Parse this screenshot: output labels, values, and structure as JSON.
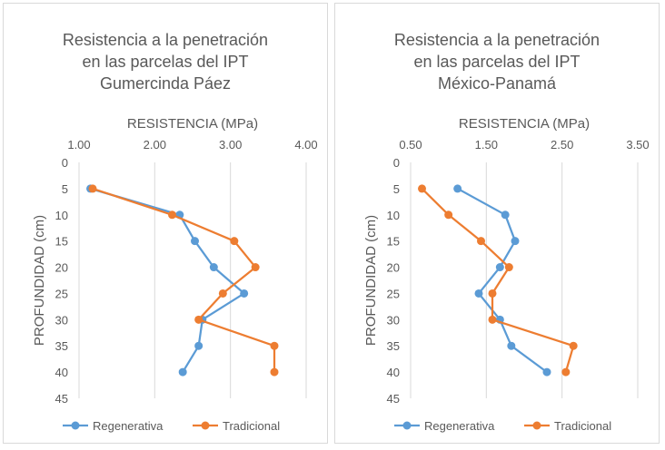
{
  "colors": {
    "regenerativa": "#5B9BD5",
    "tradicional": "#ED7D31",
    "grid": "#d9d9d9",
    "text": "#595959"
  },
  "chart_data": [
    {
      "type": "line",
      "title_lines": [
        "Resistencia a la penetración",
        "en las parcelas del IPT",
        "Gumercinda Páez"
      ],
      "xlabel": "RESISTENCIA (MPa)",
      "ylabel": "PROFUNDIDAD (cm)",
      "x_axis_position": "top",
      "y_axis_inverted": true,
      "xlim": [
        1.0,
        4.0
      ],
      "ylim": [
        0,
        45
      ],
      "x_ticks": [
        "1.00",
        "2.00",
        "3.00",
        "4.00"
      ],
      "x_tick_values": [
        1.0,
        2.0,
        3.0,
        4.0
      ],
      "y_ticks": [
        "0",
        "5",
        "10",
        "15",
        "20",
        "25",
        "30",
        "35",
        "40",
        "45"
      ],
      "y_tick_values": [
        0,
        5,
        10,
        15,
        20,
        25,
        30,
        35,
        40,
        45
      ],
      "grid": "vertical",
      "legend_position": "bottom",
      "series": [
        {
          "name": "Regenerativa",
          "color": "#5B9BD5",
          "x": [
            1.15,
            2.33,
            2.53,
            2.78,
            3.18,
            2.63,
            2.58,
            2.37
          ],
          "y": [
            5,
            10,
            15,
            20,
            25,
            30,
            35,
            40
          ]
        },
        {
          "name": "Tradicional",
          "color": "#ED7D31",
          "x": [
            1.18,
            2.23,
            3.05,
            3.33,
            2.9,
            2.58,
            3.58,
            3.58
          ],
          "y": [
            5,
            10,
            15,
            20,
            25,
            30,
            35,
            40
          ]
        }
      ]
    },
    {
      "type": "line",
      "title_lines": [
        "Resistencia a la penetración",
        "en las parcelas del IPT",
        "México-Panamá"
      ],
      "xlabel": "RESISTENCIA (MPa)",
      "ylabel": "PROFUNDIDAD (cm)",
      "x_axis_position": "top",
      "y_axis_inverted": true,
      "xlim": [
        0.5,
        3.5
      ],
      "ylim": [
        0,
        45
      ],
      "x_ticks": [
        "0.50",
        "1.50",
        "2.50",
        "3.50"
      ],
      "x_tick_values": [
        0.5,
        1.5,
        2.5,
        3.5
      ],
      "y_ticks": [
        "0",
        "5",
        "10",
        "15",
        "20",
        "25",
        "30",
        "35",
        "40",
        "45"
      ],
      "y_tick_values": [
        0,
        5,
        10,
        15,
        20,
        25,
        30,
        35,
        40,
        45
      ],
      "grid": "vertical",
      "legend_position": "bottom",
      "series": [
        {
          "name": "Regenerativa",
          "color": "#5B9BD5",
          "x": [
            1.12,
            1.75,
            1.88,
            1.68,
            1.4,
            1.68,
            1.83,
            2.3
          ],
          "y": [
            5,
            10,
            15,
            20,
            25,
            30,
            35,
            40
          ]
        },
        {
          "name": "Tradicional",
          "color": "#ED7D31",
          "x": [
            0.65,
            1.0,
            1.43,
            1.8,
            1.58,
            1.58,
            2.65,
            2.55
          ],
          "y": [
            5,
            10,
            15,
            20,
            25,
            30,
            35,
            40
          ]
        }
      ]
    }
  ]
}
